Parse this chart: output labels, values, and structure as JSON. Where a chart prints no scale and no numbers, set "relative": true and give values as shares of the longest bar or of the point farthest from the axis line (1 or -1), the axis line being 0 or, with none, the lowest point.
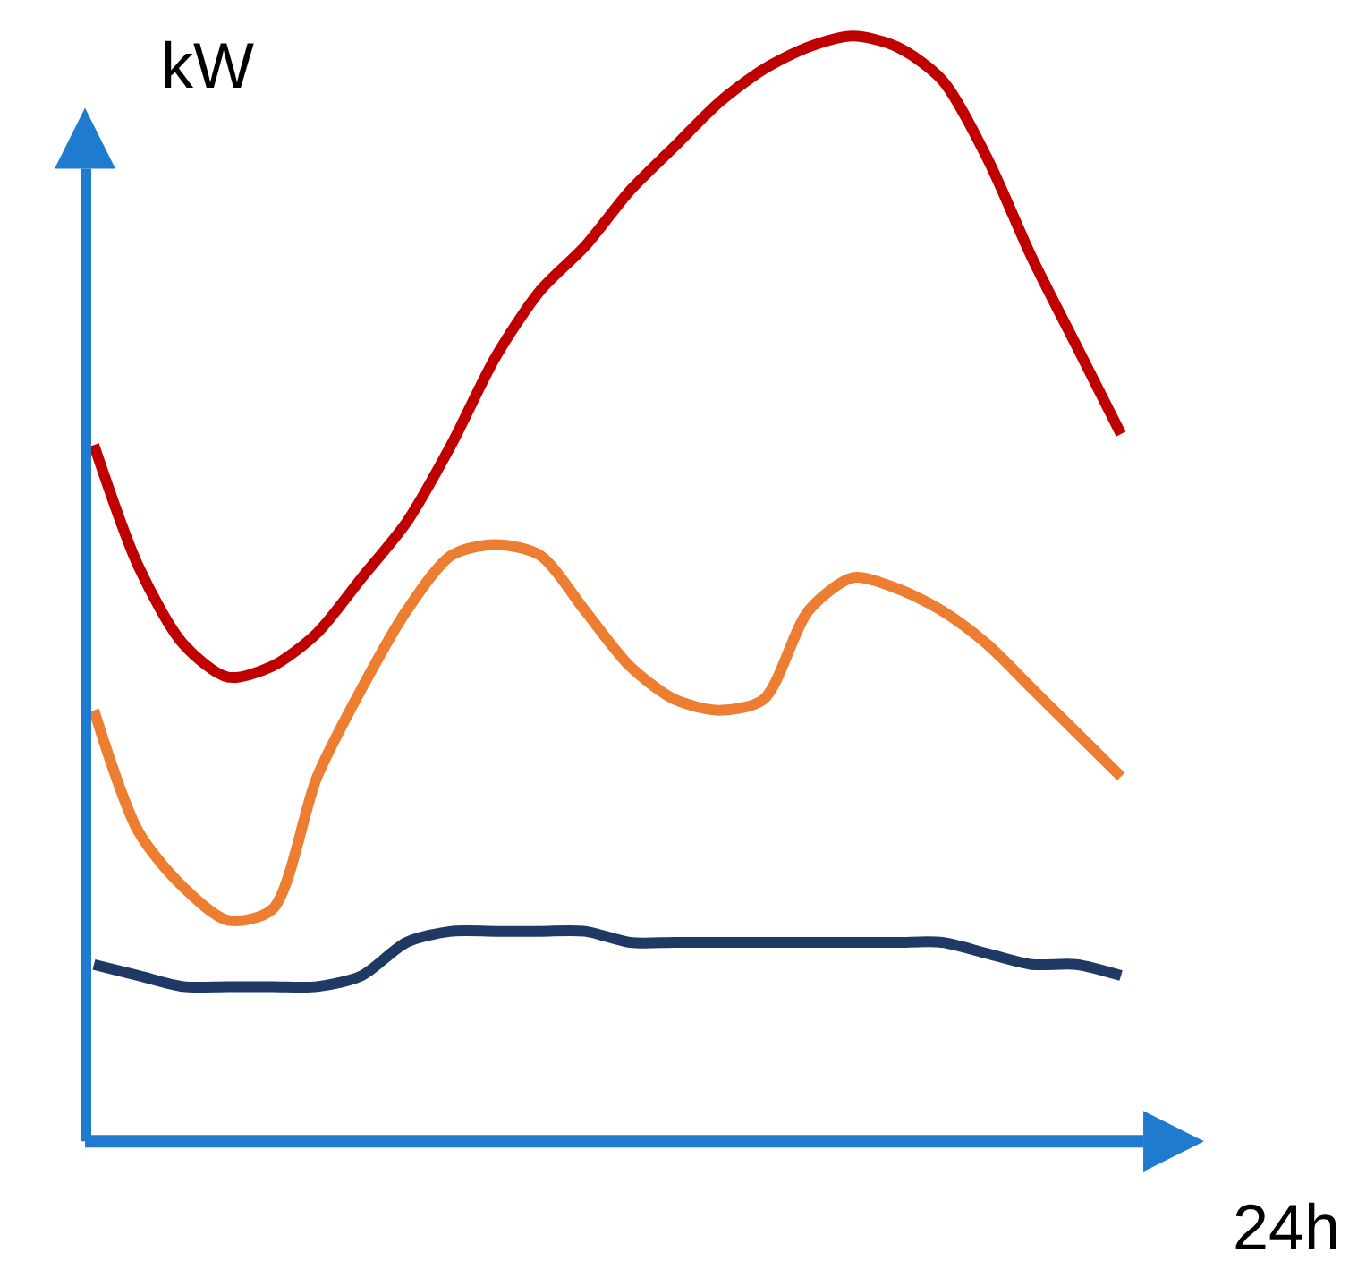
{
  "chart_data": {
    "type": "line",
    "relative": true,
    "xlabel": "24h",
    "ylabel": "kW",
    "grid": false,
    "marker": "none",
    "line_style": "solid",
    "categories": [
      null,
      null,
      null,
      null,
      null,
      null,
      null,
      null,
      null,
      null,
      null,
      null,
      null,
      null,
      null,
      null,
      null,
      null,
      null,
      null,
      null,
      null,
      null,
      null
    ],
    "series": [
      {
        "color": "#c00000",
        "values": [
          0.63,
          0.52,
          0.45,
          0.42,
          0.43,
          0.46,
          0.51,
          0.56,
          0.63,
          0.71,
          0.77,
          0.81,
          0.86,
          0.9,
          0.94,
          0.97,
          0.99,
          1,
          0.99,
          0.96,
          0.89,
          0.8,
          0.72,
          0.64
        ]
      },
      {
        "color": "#ed7d31",
        "values": [
          0.39,
          0.28,
          0.23,
          0.2,
          0.21,
          0.33,
          0.41,
          0.48,
          0.53,
          0.54,
          0.53,
          0.48,
          0.43,
          0.4,
          0.39,
          0.4,
          0.48,
          0.51,
          0.5,
          0.48,
          0.45,
          0.41,
          0.37,
          0.33
        ]
      },
      {
        "color": "#1f3864",
        "values": [
          0.16,
          0.15,
          0.14,
          0.14,
          0.14,
          0.14,
          0.15,
          0.18,
          0.19,
          0.19,
          0.19,
          0.19,
          0.18,
          0.18,
          0.18,
          0.18,
          0.18,
          0.18,
          0.18,
          0.18,
          0.17,
          0.16,
          0.16,
          0.15
        ]
      }
    ]
  }
}
